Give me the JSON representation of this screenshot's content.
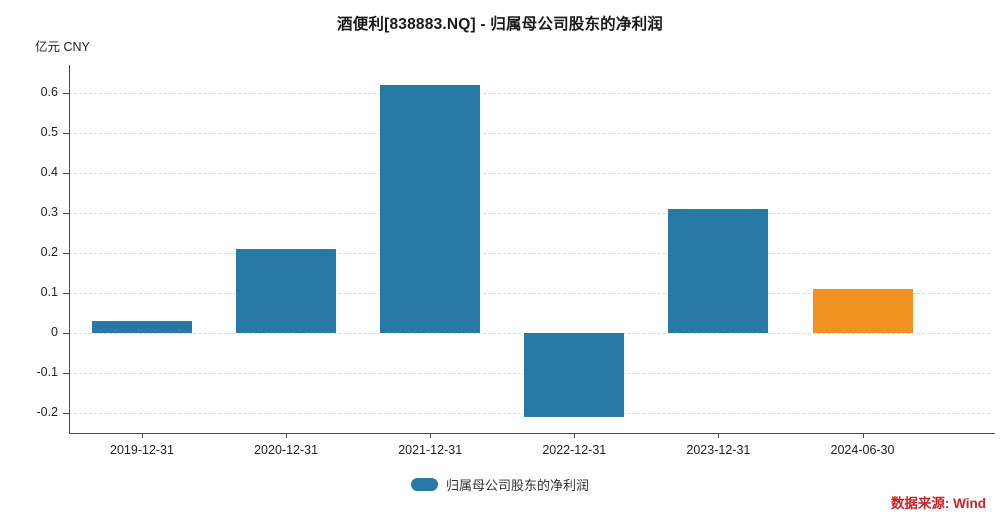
{
  "title": "酒便利[838883.NQ] - 归属母公司股东的净利润",
  "unit_label": "亿元  CNY",
  "legend": {
    "label": "归属母公司股东的净利润",
    "swatch_color": "#2979a6"
  },
  "source": {
    "label": "数据来源: Wind",
    "color": "#c92222"
  },
  "colors": {
    "bar_default": "#2979a6",
    "bar_highlight": "#f0921f",
    "gridline": "#dadada",
    "axis": "#4a4a4a"
  },
  "chart_data": {
    "type": "bar",
    "title": "酒便利[838883.NQ] - 归属母公司股东的净利润",
    "ylabel": "亿元 CNY",
    "xlabel": "",
    "categories": [
      "2019-12-31",
      "2020-12-31",
      "2021-12-31",
      "2022-12-31",
      "2023-12-31",
      "2024-06-30"
    ],
    "series": [
      {
        "name": "归属母公司股东的净利润",
        "values": [
          0.03,
          0.21,
          0.62,
          -0.21,
          0.31,
          0.11
        ]
      }
    ],
    "bar_colors": [
      "#2979a6",
      "#2979a6",
      "#2979a6",
      "#2979a6",
      "#2979a6",
      "#f0921f"
    ],
    "yticks": [
      0.6,
      0.5,
      0.4,
      0.3,
      0.2,
      0.1,
      0,
      -0.1,
      -0.2
    ],
    "ylim": [
      -0.25,
      0.67
    ],
    "grid": "horizontal-dashed",
    "legend_position": "bottom-center"
  }
}
